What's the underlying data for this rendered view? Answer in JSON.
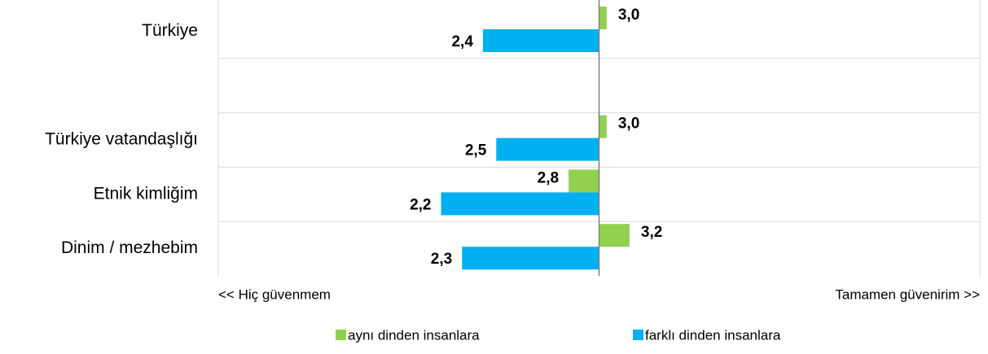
{
  "chart_data": {
    "type": "bar",
    "orientation": "horizontal",
    "categories": [
      "Türkiye",
      null,
      "Türkiye vatandaşlığı",
      "Etnik kimliğim",
      "Dinim / mezhebim"
    ],
    "series": [
      {
        "name": "aynı dinden insanlara",
        "color": "#92d050",
        "values": [
          3.04,
          null,
          3.04,
          2.84,
          3.16
        ],
        "value_labels": [
          "3,0",
          null,
          "3,0",
          "2,8",
          "3,2"
        ]
      },
      {
        "name": "farklı  dinden insanlara",
        "color": "#00b0f0",
        "values": [
          2.39,
          null,
          2.46,
          2.17,
          2.28
        ],
        "value_labels": [
          "2,4",
          null,
          "2,5",
          "2,2",
          "2,3"
        ]
      }
    ],
    "xlim": [
      1,
      5
    ],
    "annotations": [
      "<< Hiç güvenmem",
      "Tamamen güvenirim >>"
    ],
    "legend": "bottom"
  }
}
